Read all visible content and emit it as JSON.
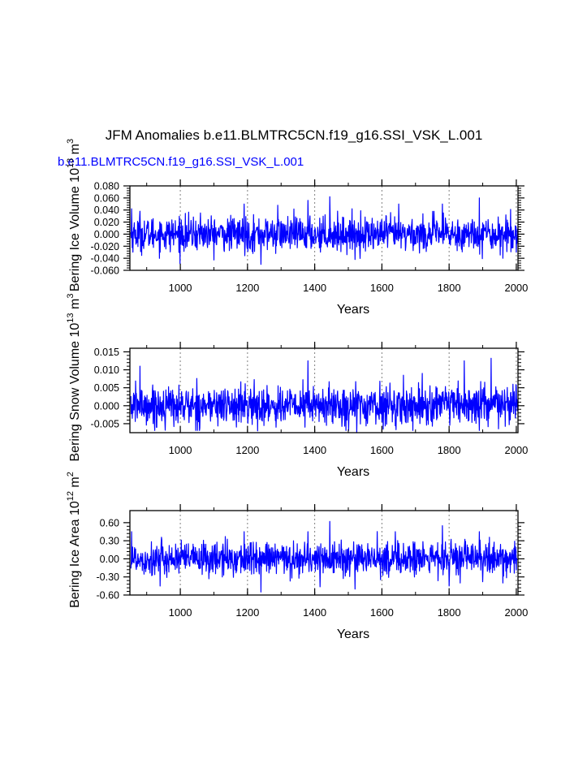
{
  "title": "JFM Anomalies b.e11.BLMTRC5CN.f19_g16.SSI_VSK_L.001",
  "subtitle": "b.e11.BLMTRC5CN.f19_g16.SSI_VSK_L.001",
  "colors": {
    "series": "#0000ff",
    "axis": "#000000",
    "grid": "#808080"
  },
  "chart_data": [
    {
      "type": "line",
      "ylabel": "Bering Ice Volume 10^13 m^3",
      "ylabel_parts": [
        "Bering Ice Volume 10",
        "13",
        " m",
        "3"
      ],
      "xlabel": "Years",
      "xlim": [
        850,
        2005
      ],
      "ylim": [
        -0.06,
        0.08
      ],
      "xticks": [
        1000,
        1200,
        1400,
        1600,
        1800,
        2000
      ],
      "yticks": [
        -0.06,
        -0.04,
        -0.02,
        0.0,
        0.02,
        0.04,
        0.06,
        0.08
      ],
      "ytick_labels": [
        "-0.060",
        "-0.040",
        "-0.020",
        "0.000",
        "0.020",
        "0.040",
        "0.060",
        "0.080"
      ],
      "grid": "x-dashed",
      "series": [
        {
          "noise_sd": 0.014,
          "anchors": [
            [
              855,
              0.042
            ],
            [
              880,
              0.038
            ],
            [
              940,
              -0.03
            ],
            [
              1060,
              0.035
            ],
            [
              1190,
              0.05
            ],
            [
              1240,
              -0.05
            ],
            [
              1290,
              0.048
            ],
            [
              1380,
              0.056
            ],
            [
              1445,
              0.062
            ],
            [
              1520,
              -0.042
            ],
            [
              1650,
              0.05
            ],
            [
              1780,
              0.05
            ],
            [
              1890,
              0.06
            ],
            [
              1960,
              -0.04
            ]
          ]
        }
      ]
    },
    {
      "type": "line",
      "ylabel": "Bering Snow Volume 10^13 m^3",
      "ylabel_parts": [
        "Bering Snow Volume 10",
        "13",
        " m",
        "3"
      ],
      "xlabel": "Years",
      "xlim": [
        850,
        2005
      ],
      "ylim": [
        -0.0075,
        0.016
      ],
      "xticks": [
        1000,
        1200,
        1400,
        1600,
        1800,
        2000
      ],
      "yticks": [
        -0.005,
        0.0,
        0.005,
        0.01,
        0.015
      ],
      "ytick_labels": [
        "-0.005",
        "0.000",
        "0.005",
        "0.010",
        "0.015"
      ],
      "grid": "x-dashed",
      "series": [
        {
          "noise_sd": 0.0027,
          "anchors": [
            [
              880,
              0.011
            ],
            [
              930,
              -0.006
            ],
            [
              1230,
              -0.007
            ],
            [
              1380,
              0.0125
            ],
            [
              1525,
              -0.0075
            ],
            [
              1720,
              0.009
            ],
            [
              1845,
              0.0125
            ],
            [
              1925,
              0.0132
            ],
            [
              1990,
              0.006
            ]
          ]
        }
      ]
    },
    {
      "type": "line",
      "ylabel": "Bering Ice Area 10^12 m^2",
      "ylabel_parts": [
        "Bering Ice Area 10",
        "12",
        " m",
        "2"
      ],
      "xlabel": "Years",
      "xlim": [
        850,
        2005
      ],
      "ylim": [
        -0.6,
        0.8
      ],
      "xticks": [
        1000,
        1200,
        1400,
        1600,
        1800,
        2000
      ],
      "yticks": [
        -0.6,
        -0.3,
        0.0,
        0.3,
        0.6
      ],
      "ytick_labels": [
        "-0.60",
        "-0.30",
        "0.00",
        "0.30",
        "0.60"
      ],
      "grid": "x-dashed",
      "series": [
        {
          "noise_sd": 0.14,
          "anchors": [
            [
              855,
              0.45
            ],
            [
              940,
              -0.45
            ],
            [
              1190,
              0.45
            ],
            [
              1240,
              -0.55
            ],
            [
              1380,
              0.45
            ],
            [
              1445,
              0.62
            ],
            [
              1520,
              -0.5
            ],
            [
              1640,
              0.45
            ],
            [
              1780,
              0.55
            ],
            [
              1800,
              -0.45
            ],
            [
              1890,
              0.45
            ],
            [
              1960,
              -0.4
            ]
          ]
        }
      ]
    }
  ]
}
